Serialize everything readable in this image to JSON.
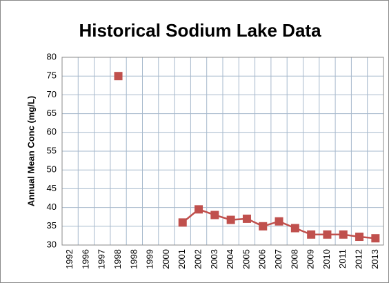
{
  "chart_data": {
    "type": "line",
    "title": "Historical Sodium Lake Data",
    "y_label": "Annual Mean Conc (mg/L)",
    "categories": [
      "1992",
      "1996",
      "1997",
      "1998",
      "1998",
      "1999",
      "2000",
      "2001",
      "2002",
      "2003",
      "2004",
      "2005",
      "2006",
      "2007",
      "2008",
      "2009",
      "2010",
      "2011",
      "2012",
      "2013"
    ],
    "series": [
      {
        "name": "Sodium",
        "color": "#c0504d",
        "values": [
          null,
          null,
          null,
          75,
          null,
          null,
          null,
          36,
          39.5,
          38,
          36.7,
          37,
          35,
          36.3,
          34.5,
          32.8,
          32.8,
          32.8,
          32.2,
          31.8
        ]
      }
    ],
    "ylim": [
      30,
      80
    ],
    "yticks": [
      30,
      35,
      40,
      45,
      50,
      55,
      60,
      65,
      70,
      75,
      80
    ],
    "grid": true
  }
}
